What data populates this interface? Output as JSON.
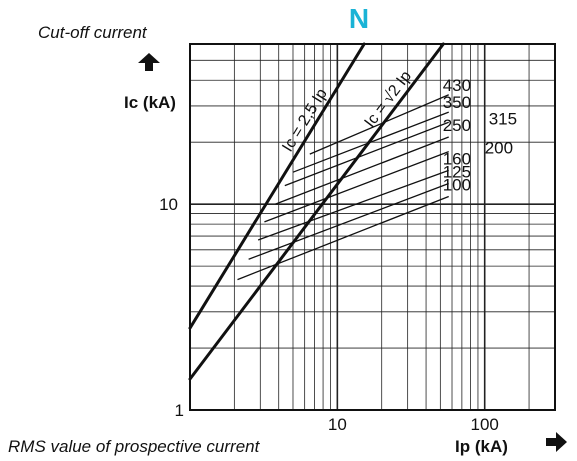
{
  "header": {
    "top_note": "Cut-off current",
    "bottom_note": "RMS value of prospective current",
    "series_letter": "N",
    "accent_color": "#1ab3d6"
  },
  "chart_data": {
    "type": "line",
    "title": "",
    "xlabel": "Ip (kA)",
    "ylabel": "Ic (kA)",
    "x_scale": "log",
    "y_scale": "log",
    "xlim": [
      1,
      300
    ],
    "ylim": [
      1,
      60
    ],
    "grid": true,
    "x_ticks": [
      {
        "value": 10,
        "label": "10"
      },
      {
        "value": 100,
        "label": "100"
      }
    ],
    "y_ticks": [
      {
        "value": 1,
        "label": "1"
      },
      {
        "value": 10,
        "label": "10"
      }
    ],
    "reference_lines": [
      {
        "name": "Ic = 2,5 Ip",
        "points": [
          [
            1,
            2.5
          ],
          [
            15.2,
            60
          ]
        ]
      },
      {
        "name": "Ic = √2 Ip",
        "points": [
          [
            1,
            1.414
          ],
          [
            52.4,
            60
          ]
        ]
      }
    ],
    "series": [
      {
        "name": "430",
        "points": [
          [
            6.5,
            17.5
          ],
          [
            57,
            34
          ]
        ]
      },
      {
        "name": "350",
        "points": [
          [
            5,
            14.3
          ],
          [
            57,
            28
          ]
        ]
      },
      {
        "name": "315",
        "points": [
          [
            4.4,
            12.3
          ],
          [
            57,
            25
          ]
        ]
      },
      {
        "name": "250",
        "points": [
          [
            3.8,
            10
          ],
          [
            57,
            21.2
          ]
        ]
      },
      {
        "name": "200",
        "points": [
          [
            3.2,
            8.2
          ],
          [
            57,
            18
          ]
        ]
      },
      {
        "name": "160",
        "points": [
          [
            2.9,
            6.7
          ],
          [
            57,
            14.6
          ]
        ]
      },
      {
        "name": "125",
        "points": [
          [
            2.5,
            5.4
          ],
          [
            57,
            12.6
          ]
        ]
      },
      {
        "name": "100",
        "points": [
          [
            2.1,
            4.3
          ],
          [
            57,
            10.9
          ]
        ]
      }
    ]
  }
}
